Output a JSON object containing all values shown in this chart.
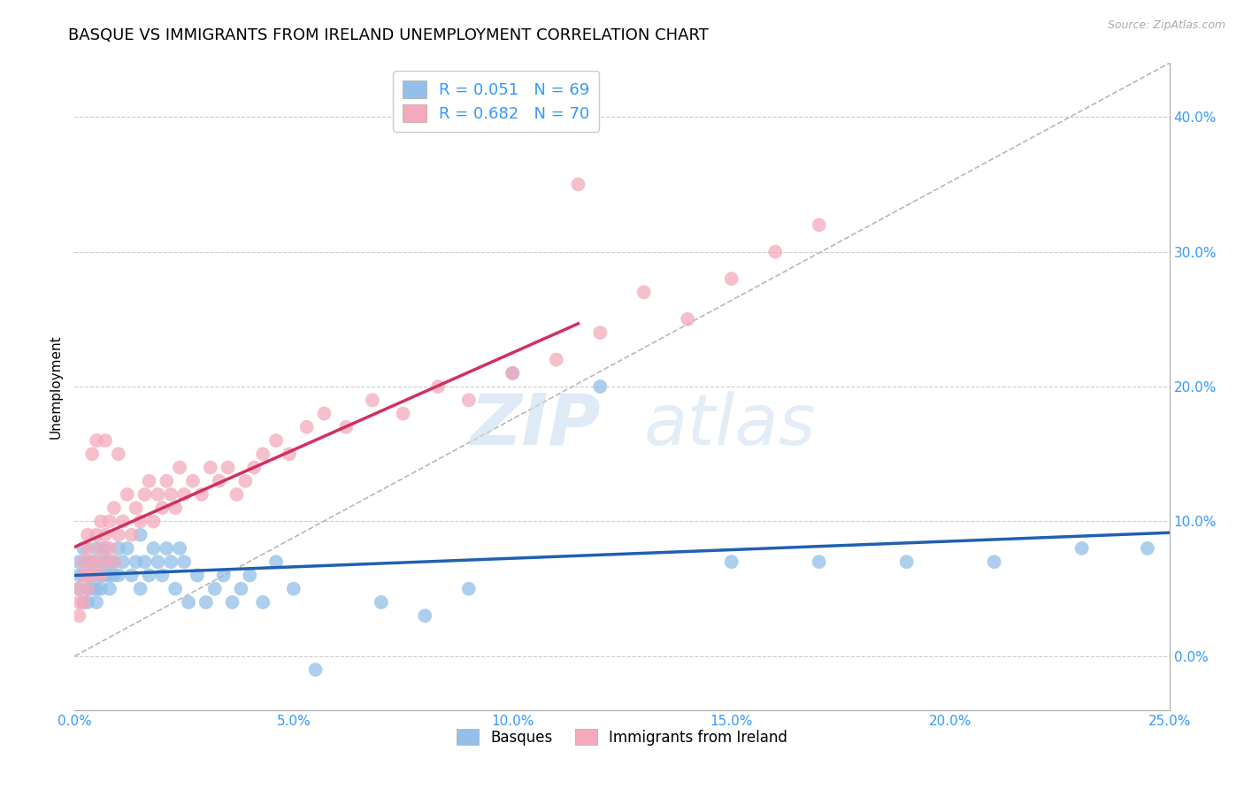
{
  "title": "BASQUE VS IMMIGRANTS FROM IRELAND UNEMPLOYMENT CORRELATION CHART",
  "source": "Source: ZipAtlas.com",
  "xlabel_ticks": [
    "0.0%",
    "5.0%",
    "10.0%",
    "15.0%",
    "20.0%",
    "25.0%"
  ],
  "xlabel_vals": [
    0.0,
    0.05,
    0.1,
    0.15,
    0.2,
    0.25
  ],
  "ylabel": "Unemployment",
  "right_ytick_labels": [
    "0.0%",
    "10.0%",
    "20.0%",
    "30.0%",
    "40.0%"
  ],
  "right_ytick_vals": [
    0.0,
    0.1,
    0.2,
    0.3,
    0.4
  ],
  "xlim": [
    0.0,
    0.25
  ],
  "ylim": [
    -0.04,
    0.44
  ],
  "blue_color": "#92c0e8",
  "pink_color": "#f4aabc",
  "blue_line_color": "#2060b0",
  "pink_line_color": "#d03060",
  "diagonal_color": "#b8b8b8",
  "R_blue": 0.051,
  "N_blue": 69,
  "R_pink": 0.682,
  "N_pink": 70,
  "legend_label_blue": "Basques",
  "legend_label_pink": "Immigrants from Ireland",
  "watermark_zip": "ZIP",
  "watermark_atlas": "atlas",
  "title_fontsize": 13,
  "tick_fontsize": 11,
  "blue_x": [
    0.001,
    0.001,
    0.001,
    0.002,
    0.002,
    0.002,
    0.003,
    0.003,
    0.003,
    0.003,
    0.004,
    0.004,
    0.004,
    0.005,
    0.005,
    0.005,
    0.005,
    0.006,
    0.006,
    0.006,
    0.007,
    0.007,
    0.007,
    0.008,
    0.008,
    0.008,
    0.009,
    0.009,
    0.01,
    0.01,
    0.011,
    0.012,
    0.013,
    0.014,
    0.015,
    0.015,
    0.016,
    0.017,
    0.018,
    0.019,
    0.02,
    0.021,
    0.022,
    0.023,
    0.024,
    0.025,
    0.026,
    0.028,
    0.03,
    0.032,
    0.034,
    0.036,
    0.038,
    0.04,
    0.043,
    0.046,
    0.05,
    0.055,
    0.07,
    0.08,
    0.09,
    0.1,
    0.12,
    0.15,
    0.17,
    0.19,
    0.21,
    0.23,
    0.245
  ],
  "blue_y": [
    0.06,
    0.07,
    0.05,
    0.04,
    0.06,
    0.08,
    0.05,
    0.07,
    0.04,
    0.06,
    0.06,
    0.05,
    0.07,
    0.04,
    0.06,
    0.05,
    0.08,
    0.07,
    0.05,
    0.06,
    0.07,
    0.06,
    0.08,
    0.07,
    0.06,
    0.05,
    0.06,
    0.07,
    0.08,
    0.06,
    0.07,
    0.08,
    0.06,
    0.07,
    0.05,
    0.09,
    0.07,
    0.06,
    0.08,
    0.07,
    0.06,
    0.08,
    0.07,
    0.05,
    0.08,
    0.07,
    0.04,
    0.06,
    0.04,
    0.05,
    0.06,
    0.04,
    0.05,
    0.06,
    0.04,
    0.07,
    0.05,
    -0.01,
    0.04,
    0.03,
    0.05,
    0.21,
    0.2,
    0.07,
    0.07,
    0.07,
    0.07,
    0.08,
    0.08
  ],
  "pink_x": [
    0.001,
    0.001,
    0.001,
    0.002,
    0.002,
    0.002,
    0.003,
    0.003,
    0.003,
    0.003,
    0.004,
    0.004,
    0.004,
    0.005,
    0.005,
    0.005,
    0.006,
    0.006,
    0.006,
    0.007,
    0.007,
    0.007,
    0.008,
    0.008,
    0.009,
    0.009,
    0.01,
    0.01,
    0.011,
    0.012,
    0.013,
    0.014,
    0.015,
    0.016,
    0.017,
    0.018,
    0.019,
    0.02,
    0.021,
    0.022,
    0.023,
    0.024,
    0.025,
    0.027,
    0.029,
    0.031,
    0.033,
    0.035,
    0.037,
    0.039,
    0.041,
    0.043,
    0.046,
    0.049,
    0.053,
    0.057,
    0.062,
    0.068,
    0.075,
    0.083,
    0.09,
    0.1,
    0.11,
    0.115,
    0.12,
    0.13,
    0.14,
    0.15,
    0.16,
    0.17
  ],
  "pink_y": [
    0.04,
    0.05,
    0.03,
    0.06,
    0.04,
    0.07,
    0.05,
    0.08,
    0.06,
    0.09,
    0.07,
    0.06,
    0.15,
    0.07,
    0.09,
    0.16,
    0.08,
    0.1,
    0.06,
    0.09,
    0.07,
    0.16,
    0.08,
    0.1,
    0.07,
    0.11,
    0.09,
    0.15,
    0.1,
    0.12,
    0.09,
    0.11,
    0.1,
    0.12,
    0.13,
    0.1,
    0.12,
    0.11,
    0.13,
    0.12,
    0.11,
    0.14,
    0.12,
    0.13,
    0.12,
    0.14,
    0.13,
    0.14,
    0.12,
    0.13,
    0.14,
    0.15,
    0.16,
    0.15,
    0.17,
    0.18,
    0.17,
    0.19,
    0.18,
    0.2,
    0.19,
    0.21,
    0.22,
    0.35,
    0.24,
    0.27,
    0.25,
    0.28,
    0.3,
    0.32
  ]
}
